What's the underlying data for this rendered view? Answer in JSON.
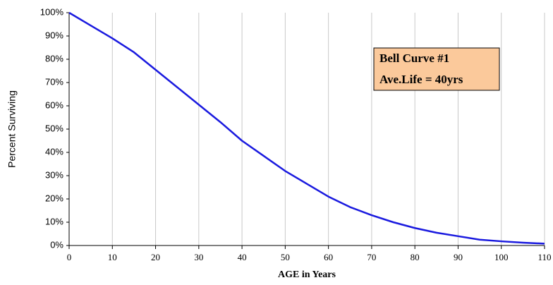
{
  "chart_data": {
    "type": "line",
    "xlabel": "AGE in Years",
    "ylabel": "Percent Surviving",
    "annotations": [
      "Bell Curve #1",
      "Ave.Life = 40yrs"
    ],
    "x": [
      0,
      5,
      10,
      15,
      20,
      25,
      30,
      35,
      40,
      45,
      50,
      55,
      60,
      65,
      70,
      75,
      80,
      85,
      90,
      95,
      100,
      105,
      110
    ],
    "series": [
      {
        "color": "#1a1adf",
        "values": [
          100,
          94.5,
          89,
          83,
          75.5,
          68,
          60.5,
          53,
          45,
          38.5,
          32,
          26.5,
          21,
          16.5,
          13,
          10,
          7.5,
          5.5,
          4,
          2.5,
          1.8,
          1.2,
          0.8
        ]
      }
    ],
    "xlim": [
      0,
      110
    ],
    "xticks": [
      0,
      10,
      20,
      30,
      40,
      50,
      60,
      70,
      80,
      90,
      100,
      110
    ],
    "ylim": [
      0,
      100
    ],
    "yticks": [
      {
        "value": 0,
        "label": "0%"
      },
      {
        "value": 10,
        "label": "10%"
      },
      {
        "value": 20,
        "label": "20%"
      },
      {
        "value": 30,
        "label": "30%"
      },
      {
        "value": 40,
        "label": "40%"
      },
      {
        "value": 50,
        "label": "50%"
      },
      {
        "value": 60,
        "label": "60%"
      },
      {
        "value": 70,
        "label": "70%"
      },
      {
        "value": 80,
        "label": "80%"
      },
      {
        "value": 90,
        "label": "90%"
      },
      {
        "value": 100,
        "label": "100%"
      }
    ],
    "grid": "x"
  }
}
